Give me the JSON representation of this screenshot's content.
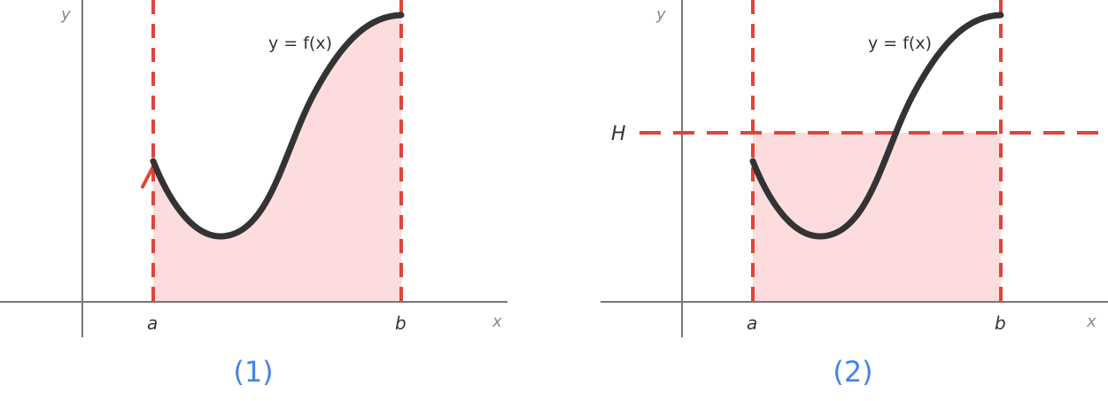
{
  "colors": {
    "accent_red": "#e0443a",
    "fill_pink": "#fcdcdc",
    "curve": "#333333",
    "axis": "#777777",
    "caption_blue": "#3f86e6"
  },
  "panel1": {
    "caption": "(1)",
    "y_label": "y",
    "x_label": "x",
    "func_label": "y = f(x)",
    "a_label": "a",
    "b_label": "b"
  },
  "panel2": {
    "caption": "(2)",
    "y_label": "y",
    "x_label": "x",
    "func_label": "y = f(x)",
    "a_label": "a",
    "b_label": "b",
    "h_label": "H"
  }
}
